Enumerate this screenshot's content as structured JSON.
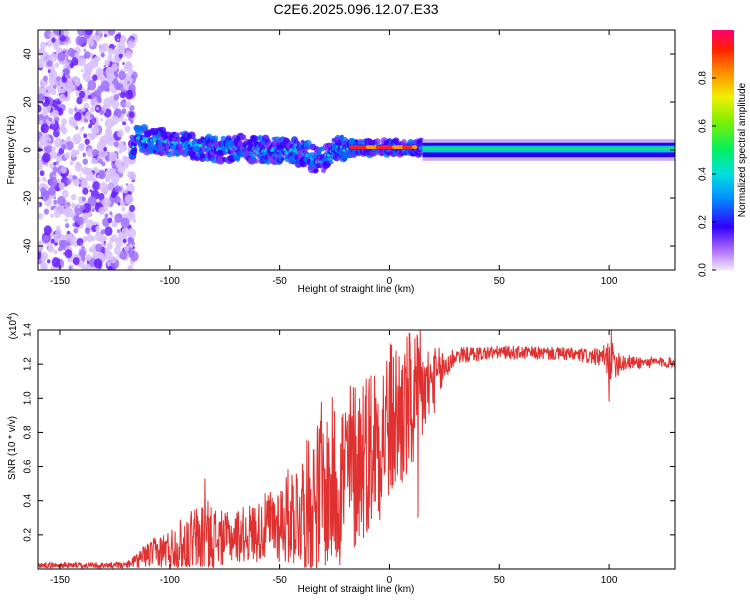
{
  "page": {
    "title": "C2E6.2025.096.12.07.E33"
  },
  "chart_data": [
    {
      "type": "heatmap",
      "xlabel": "Height of straight line (km)",
      "ylabel": "Frequency (Hz)",
      "xlim": [
        -160,
        130
      ],
      "ylim": [
        -50,
        50
      ],
      "xticks": [
        -150,
        -100,
        -50,
        0,
        50,
        100
      ],
      "yticks": [
        -40,
        -20,
        0,
        20,
        40
      ],
      "noise_region_x": [
        -160,
        -118
      ],
      "ridge": [
        {
          "x": -116,
          "y": 5
        },
        {
          "x": -100,
          "y": 3
        },
        {
          "x": -90,
          "y": 2
        },
        {
          "x": -80,
          "y": 0
        },
        {
          "x": -70,
          "y": 1
        },
        {
          "x": -60,
          "y": 0
        },
        {
          "x": -50,
          "y": 0
        },
        {
          "x": -40,
          "y": -1
        },
        {
          "x": -32,
          "y": -5
        },
        {
          "x": -25,
          "y": 0
        },
        {
          "x": -20,
          "y": 1
        },
        {
          "x": 0,
          "y": 1
        },
        {
          "x": 15,
          "y": 1
        },
        {
          "x": 50,
          "y": 0.5
        },
        {
          "x": 100,
          "y": 0.5
        },
        {
          "x": 130,
          "y": 0.5
        }
      ],
      "colorbar": {
        "label": "Normalized spectral amplitude",
        "ticks": [
          0.0,
          0.2,
          0.4,
          0.6,
          0.8
        ],
        "range": [
          0,
          1
        ]
      }
    },
    {
      "type": "line",
      "xlabel": "Height of straight line (km)",
      "ylabel": "SNR (10 * v/v)",
      "scale_label": "(x10",
      "scale_exp": "4",
      "scale_close": ")",
      "xlim": [
        -160,
        130
      ],
      "ylim": [
        0,
        1.4
      ],
      "xticks": [
        -150,
        -100,
        -50,
        0,
        50,
        100
      ],
      "yticks": [
        0.2,
        0.4,
        0.6,
        0.8,
        1.0,
        1.2,
        1.4
      ],
      "color": "#e03030",
      "envelope": [
        {
          "x": -160,
          "base": 0.02,
          "amp": 0.02
        },
        {
          "x": -120,
          "base": 0.02,
          "amp": 0.02
        },
        {
          "x": -110,
          "base": 0.08,
          "amp": 0.08
        },
        {
          "x": -100,
          "base": 0.12,
          "amp": 0.12
        },
        {
          "x": -85,
          "base": 0.18,
          "amp": 0.25
        },
        {
          "x": -75,
          "base": 0.18,
          "amp": 0.15
        },
        {
          "x": -60,
          "base": 0.22,
          "amp": 0.18
        },
        {
          "x": -50,
          "base": 0.28,
          "amp": 0.25
        },
        {
          "x": -40,
          "base": 0.35,
          "amp": 0.35
        },
        {
          "x": -30,
          "base": 0.45,
          "amp": 0.5
        },
        {
          "x": -20,
          "base": 0.55,
          "amp": 0.55
        },
        {
          "x": -10,
          "base": 0.7,
          "amp": 0.5
        },
        {
          "x": 0,
          "base": 0.85,
          "amp": 0.5
        },
        {
          "x": 10,
          "base": 0.95,
          "amp": 0.45
        },
        {
          "x": 20,
          "base": 1.1,
          "amp": 0.2
        },
        {
          "x": 30,
          "base": 1.25,
          "amp": 0.05
        },
        {
          "x": 50,
          "base": 1.27,
          "amp": 0.04
        },
        {
          "x": 80,
          "base": 1.26,
          "amp": 0.04
        },
        {
          "x": 95,
          "base": 1.24,
          "amp": 0.05
        },
        {
          "x": 100,
          "base": 1.22,
          "amp": 0.12
        },
        {
          "x": 110,
          "base": 1.21,
          "amp": 0.04
        },
        {
          "x": 130,
          "base": 1.21,
          "amp": 0.03
        }
      ],
      "spikes": [
        {
          "x": -84,
          "y": 0.53
        },
        {
          "x": -31,
          "y": 0.98
        },
        {
          "x": -12,
          "y": 1.07
        },
        {
          "x": 9,
          "y": 1.38
        },
        {
          "x": 13,
          "y": 0.3
        },
        {
          "x": 14,
          "y": 1.4
        },
        {
          "x": 100,
          "y": 0.98
        },
        {
          "x": 101,
          "y": 1.4
        }
      ]
    }
  ]
}
